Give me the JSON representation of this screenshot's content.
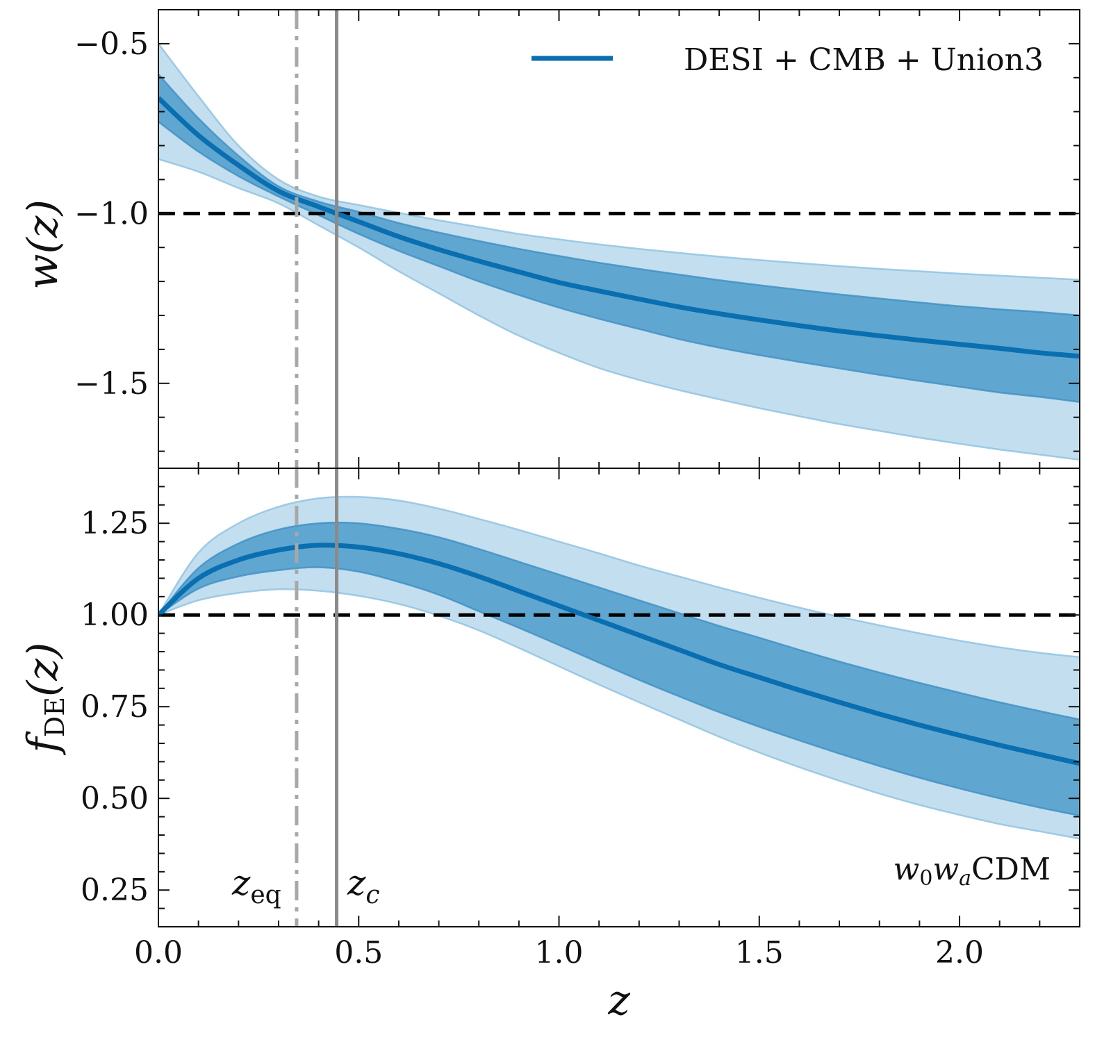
{
  "chart_data": {
    "type": "line",
    "legend": {
      "label": "DESI + CMB + Union3",
      "location": "upper-right",
      "color": "#0a6fb0"
    },
    "colors": {
      "median": "#0a6fb0",
      "band_1sigma": "#5fa7d1",
      "band_2sigma": "#c3dfef",
      "band_edge": "#8cc1e0",
      "reference": "#000000",
      "z_eq_line": "#a8a8a8",
      "z_c_line": "#8a8a8a"
    },
    "x_axis": {
      "label": "z",
      "xlim": [
        0.0,
        2.3
      ],
      "major_ticks": [
        0.0,
        0.5,
        1.0,
        1.5,
        2.0
      ],
      "tick_labels": [
        "0.0",
        "0.5",
        "1.0",
        "1.5",
        "2.0"
      ],
      "minor_step": 0.1
    },
    "vertical_lines": [
      {
        "name": "z_eq",
        "x": 0.345,
        "style": "dashdot",
        "label_main": "z",
        "label_sub": "eq"
      },
      {
        "name": "z_c",
        "x": 0.445,
        "style": "solid",
        "label_main": "z",
        "label_sub": "c"
      }
    ],
    "annotation": {
      "text_main": "w",
      "sub1": "0",
      "mid": "w",
      "sub2": "a",
      "rest": "CDM",
      "location": "lower-right"
    },
    "panels": [
      {
        "name": "w",
        "ylabel": "w(z)",
        "ylabel_main": "w",
        "ylabel_arg": "(z)",
        "ylim": [
          -1.75,
          -0.4
        ],
        "major_ticks": [
          -0.5,
          -1.0,
          -1.5
        ],
        "tick_labels": [
          "−0.5",
          "−1.0",
          "−1.5"
        ],
        "minor_step": 0.1,
        "reference_y": -1.0,
        "x": [
          0.0,
          0.1,
          0.2,
          0.3,
          0.4,
          0.5,
          0.6,
          0.7,
          0.8,
          0.9,
          1.0,
          1.1,
          1.2,
          1.3,
          1.4,
          1.5,
          1.6,
          1.7,
          1.8,
          1.9,
          2.0,
          2.1,
          2.2,
          2.3
        ],
        "median": [
          -0.66,
          -0.77,
          -0.858,
          -0.934,
          -0.98,
          -1.024,
          -1.068,
          -1.106,
          -1.14,
          -1.172,
          -1.203,
          -1.228,
          -1.252,
          -1.275,
          -1.295,
          -1.313,
          -1.33,
          -1.346,
          -1.36,
          -1.373,
          -1.385,
          -1.397,
          -1.41,
          -1.42
        ],
        "sigma1_low": [
          -0.73,
          -0.818,
          -0.89,
          -0.95,
          -1.005,
          -1.06,
          -1.11,
          -1.155,
          -1.2,
          -1.24,
          -1.277,
          -1.31,
          -1.34,
          -1.37,
          -1.395,
          -1.417,
          -1.437,
          -1.456,
          -1.475,
          -1.493,
          -1.51,
          -1.527,
          -1.54,
          -1.555
        ],
        "sigma1_high": [
          -0.59,
          -0.72,
          -0.83,
          -0.92,
          -0.965,
          -0.995,
          -1.028,
          -1.056,
          -1.081,
          -1.104,
          -1.125,
          -1.145,
          -1.163,
          -1.18,
          -1.196,
          -1.211,
          -1.225,
          -1.238,
          -1.25,
          -1.262,
          -1.273,
          -1.282,
          -1.29,
          -1.3
        ],
        "sigma2_low": [
          -0.84,
          -0.877,
          -0.925,
          -0.97,
          -1.035,
          -1.1,
          -1.17,
          -1.235,
          -1.3,
          -1.36,
          -1.41,
          -1.455,
          -1.49,
          -1.52,
          -1.547,
          -1.573,
          -1.597,
          -1.62,
          -1.64,
          -1.66,
          -1.678,
          -1.695,
          -1.71,
          -1.725
        ],
        "sigma2_high": [
          -0.5,
          -0.655,
          -0.8,
          -0.9,
          -0.95,
          -0.975,
          -0.998,
          -1.02,
          -1.04,
          -1.06,
          -1.076,
          -1.091,
          -1.104,
          -1.116,
          -1.127,
          -1.137,
          -1.146,
          -1.155,
          -1.163,
          -1.17,
          -1.177,
          -1.183,
          -1.189,
          -1.195
        ]
      },
      {
        "name": "fDE",
        "ylabel": "f_DE(z)",
        "ylabel_main": "f",
        "ylabel_sub": "DE",
        "ylabel_arg": "(z)",
        "ylim": [
          0.15,
          1.4
        ],
        "major_ticks": [
          0.25,
          0.5,
          0.75,
          1.0,
          1.25
        ],
        "tick_labels": [
          "0.25",
          "0.50",
          "0.75",
          "1.00",
          "1.25"
        ],
        "minor_step": 0.05,
        "reference_y": 1.0,
        "x": [
          0.0,
          0.1,
          0.2,
          0.3,
          0.4,
          0.5,
          0.6,
          0.7,
          0.8,
          0.9,
          1.0,
          1.1,
          1.2,
          1.3,
          1.4,
          1.5,
          1.6,
          1.7,
          1.8,
          1.9,
          2.0,
          2.1,
          2.2,
          2.3
        ],
        "median": [
          1.0,
          1.1,
          1.15,
          1.177,
          1.19,
          1.185,
          1.167,
          1.14,
          1.105,
          1.065,
          1.025,
          0.985,
          0.945,
          0.905,
          0.865,
          0.83,
          0.795,
          0.762,
          0.73,
          0.7,
          0.672,
          0.645,
          0.62,
          0.595
        ],
        "sigma1_low": [
          1.0,
          1.072,
          1.105,
          1.122,
          1.13,
          1.118,
          1.09,
          1.055,
          1.01,
          0.965,
          0.918,
          0.87,
          0.823,
          0.778,
          0.735,
          0.695,
          0.658,
          0.622,
          0.588,
          0.556,
          0.527,
          0.5,
          0.475,
          0.453
        ],
        "sigma1_high": [
          1.0,
          1.128,
          1.195,
          1.233,
          1.25,
          1.25,
          1.235,
          1.212,
          1.18,
          1.145,
          1.11,
          1.075,
          1.04,
          1.005,
          0.97,
          0.938,
          0.905,
          0.873,
          0.843,
          0.815,
          0.788,
          0.762,
          0.738,
          0.715
        ],
        "sigma2_low": [
          1.0,
          1.04,
          1.06,
          1.07,
          1.066,
          1.052,
          1.03,
          0.998,
          0.958,
          0.91,
          0.86,
          0.81,
          0.762,
          0.715,
          0.668,
          0.625,
          0.585,
          0.548,
          0.513,
          0.482,
          0.455,
          0.43,
          0.41,
          0.39
        ],
        "sigma2_high": [
          1.0,
          1.17,
          1.25,
          1.295,
          1.318,
          1.322,
          1.312,
          1.29,
          1.262,
          1.232,
          1.2,
          1.168,
          1.135,
          1.105,
          1.075,
          1.047,
          1.02,
          0.995,
          0.972,
          0.95,
          0.93,
          0.912,
          0.897,
          0.885
        ]
      }
    ]
  }
}
